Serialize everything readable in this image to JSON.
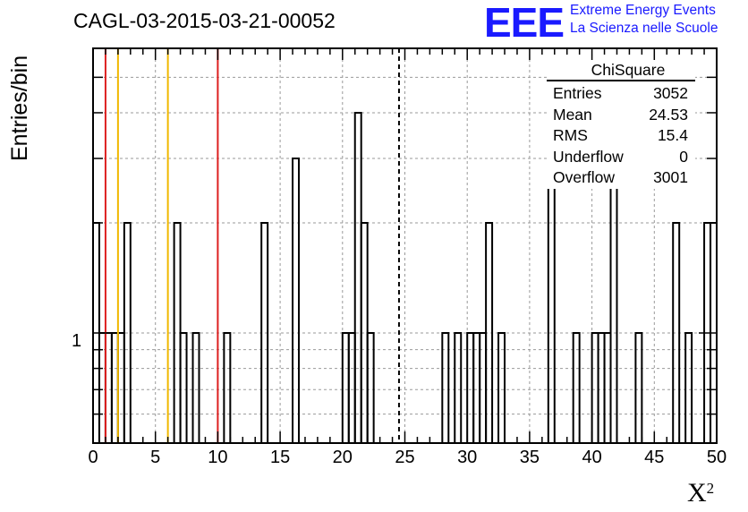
{
  "title": "CAGL-03-2015-03-21-00052",
  "logo": {
    "mark": "EEE",
    "line1": "Extreme Energy Events",
    "line2": "La Scienza nelle Scuole",
    "color": "#1a1aff"
  },
  "chart_data": {
    "type": "histogram",
    "xlabel": "X",
    "xlabel_sup": "2",
    "ylabel": "Entries/bin",
    "xlim": [
      0,
      50
    ],
    "ylim": [
      0.5,
      6
    ],
    "yscale": "log",
    "grid": true,
    "bin_width": 0.5,
    "x_tick_labels": [
      "0",
      "5",
      "10",
      "15",
      "20",
      "25",
      "30",
      "35",
      "40",
      "45",
      "50"
    ],
    "y_tick_labels": [
      "1"
    ],
    "bins": [
      {
        "x": 0.0,
        "count": 2
      },
      {
        "x": 0.5,
        "count": 1
      },
      {
        "x": 1.0,
        "count": 1
      },
      {
        "x": 1.5,
        "count": 1
      },
      {
        "x": 2.0,
        "count": 1
      },
      {
        "x": 2.5,
        "count": 2
      },
      {
        "x": 6.5,
        "count": 2
      },
      {
        "x": 7.0,
        "count": 1
      },
      {
        "x": 8.0,
        "count": 1
      },
      {
        "x": 10.5,
        "count": 1
      },
      {
        "x": 13.5,
        "count": 2
      },
      {
        "x": 16.0,
        "count": 3
      },
      {
        "x": 20.0,
        "count": 1
      },
      {
        "x": 20.5,
        "count": 1
      },
      {
        "x": 21.0,
        "count": 4
      },
      {
        "x": 21.5,
        "count": 2
      },
      {
        "x": 22.0,
        "count": 1
      },
      {
        "x": 28.0,
        "count": 1
      },
      {
        "x": 29.0,
        "count": 1
      },
      {
        "x": 30.0,
        "count": 1
      },
      {
        "x": 30.5,
        "count": 1
      },
      {
        "x": 31.0,
        "count": 1
      },
      {
        "x": 31.5,
        "count": 2
      },
      {
        "x": 32.5,
        "count": 1
      },
      {
        "x": 36.5,
        "count": 3
      },
      {
        "x": 38.5,
        "count": 1
      },
      {
        "x": 40.0,
        "count": 1
      },
      {
        "x": 40.5,
        "count": 1
      },
      {
        "x": 41.0,
        "count": 1
      },
      {
        "x": 41.5,
        "count": 3
      },
      {
        "x": 43.5,
        "count": 1
      },
      {
        "x": 46.5,
        "count": 2
      },
      {
        "x": 47.5,
        "count": 1
      },
      {
        "x": 49.0,
        "count": 2
      },
      {
        "x": 49.5,
        "count": 2
      }
    ],
    "vertical_lines": [
      {
        "x": 1,
        "color": "#dd2020",
        "style": "solid"
      },
      {
        "x": 2,
        "color": "#f0b800",
        "style": "solid"
      },
      {
        "x": 6,
        "color": "#f0b800",
        "style": "solid"
      },
      {
        "x": 10,
        "color": "#dd2020",
        "style": "solid"
      },
      {
        "x": 24.53,
        "color": "#000000",
        "style": "dashed"
      }
    ]
  },
  "stats": {
    "title": "ChiSquare",
    "rows": [
      {
        "label": "Entries",
        "value": "3052"
      },
      {
        "label": "Mean",
        "value": "24.53"
      },
      {
        "label": "RMS",
        "value": "15.4"
      },
      {
        "label": "Underflow",
        "value": "0"
      },
      {
        "label": "Overflow",
        "value": "3001"
      }
    ]
  }
}
